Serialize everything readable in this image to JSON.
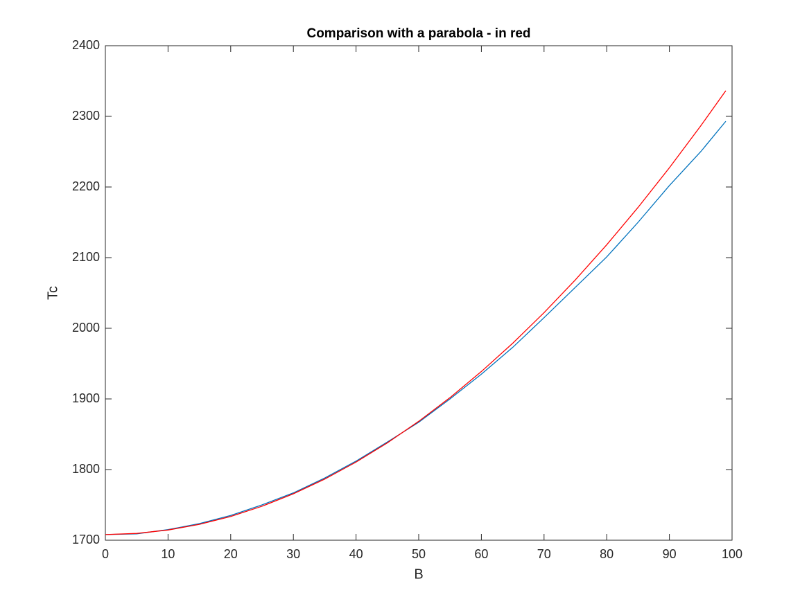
{
  "chart_data": {
    "type": "line",
    "title": "Comparison with a parabola - in red",
    "xlabel": "B",
    "ylabel": "Tc",
    "x": [
      0,
      5,
      10,
      15,
      20,
      25,
      30,
      35,
      40,
      45,
      50,
      55,
      60,
      65,
      70,
      75,
      80,
      85,
      90,
      95,
      99
    ],
    "series": [
      {
        "color": "#0072bd",
        "values": [
          1708,
          1709,
          1715,
          1723.5,
          1735,
          1750,
          1767,
          1788,
          1812,
          1839,
          1867,
          1900,
          1935,
          1973,
          2015,
          2058,
          2101,
          2150,
          2202,
          2250,
          2293
        ]
      },
      {
        "color": "#ff0000",
        "values": [
          1708,
          1709.6,
          1714.4,
          1722.4,
          1733.6,
          1748.1,
          1765.7,
          1786.5,
          1810.6,
          1837.8,
          1868.3,
          1901.9,
          1938.8,
          1978.8,
          2022.1,
          2068.6,
          2118.2,
          2171.1,
          2227.2,
          2286.5,
          2336.3
        ]
      }
    ],
    "xlim": [
      0,
      100
    ],
    "xticks": [
      0,
      10,
      20,
      30,
      40,
      50,
      60,
      70,
      80,
      90,
      100
    ],
    "ylim": [
      1700,
      2400
    ],
    "yticks": [
      1700,
      1800,
      1900,
      2000,
      2100,
      2200,
      2300,
      2400
    ]
  }
}
